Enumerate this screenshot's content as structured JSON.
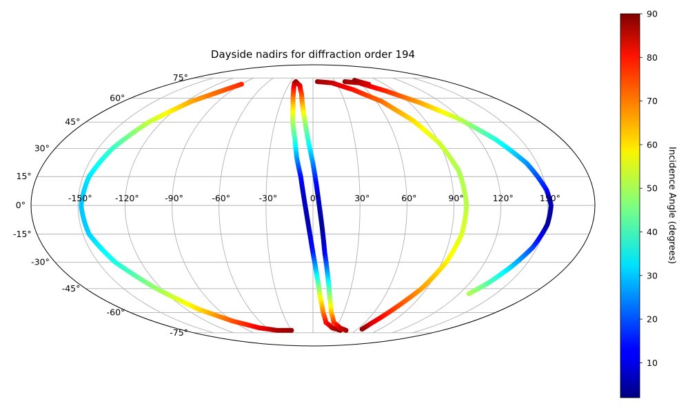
{
  "chart_data": {
    "type": "scatter",
    "projection": "mollweide",
    "title": "Dayside nadirs for diffraction order 194",
    "xlabel": "",
    "ylabel": "",
    "grid": true,
    "lon_ticks": [
      -150,
      -120,
      -90,
      -60,
      -30,
      0,
      30,
      60,
      90,
      120,
      150
    ],
    "lon_tick_labels": [
      "-150°",
      "-120°",
      "-90°",
      "-60°",
      "-30°",
      "0°",
      "30°",
      "60°",
      "90°",
      "120°",
      "150°"
    ],
    "lat_ticks": [
      75,
      60,
      45,
      30,
      15,
      0,
      -15,
      -30,
      -45,
      -60,
      -75
    ],
    "lat_tick_labels": [
      "75°",
      "60°",
      "45°",
      "30°",
      "15°",
      "0°",
      "-15°",
      "-30°",
      "-45°",
      "-60°",
      "-75°"
    ],
    "colorbar": {
      "label": "Incidence Angle (degrees)",
      "min": 2,
      "max": 90,
      "ticks": [
        10,
        20,
        30,
        40,
        50,
        60,
        70,
        80,
        90
      ],
      "tick_labels": [
        "10",
        "20",
        "30",
        "40",
        "50",
        "60",
        "70",
        "80",
        "90"
      ],
      "colormap": "jet"
    },
    "series": [
      {
        "points": [
          {
            "lon": -90,
            "lat": 70,
            "inc": 76
          },
          {
            "lon": -115,
            "lat": 58,
            "inc": 65
          },
          {
            "lon": -130,
            "lat": 45,
            "inc": 52
          },
          {
            "lon": -140,
            "lat": 30,
            "inc": 40
          },
          {
            "lon": -146,
            "lat": 15,
            "inc": 33
          },
          {
            "lon": -148,
            "lat": 0,
            "inc": 30
          },
          {
            "lon": -146,
            "lat": -15,
            "inc": 31
          },
          {
            "lon": -138,
            "lat": -30,
            "inc": 37
          },
          {
            "lon": -124,
            "lat": -45,
            "inc": 48
          },
          {
            "lon": -108,
            "lat": -58,
            "inc": 60
          },
          {
            "lon": -90,
            "lat": -66,
            "inc": 72
          },
          {
            "lon": -70,
            "lat": -71,
            "inc": 80
          },
          {
            "lon": -50,
            "lat": -73,
            "inc": 86
          },
          {
            "lon": -30,
            "lat": -73,
            "inc": 88
          }
        ]
      },
      {
        "points": [
          {
            "lon": -24,
            "lat": 71,
            "inc": 85
          },
          {
            "lon": -21,
            "lat": 64,
            "inc": 75
          },
          {
            "lon": -18,
            "lat": 55,
            "inc": 62
          },
          {
            "lon": -16,
            "lat": 45,
            "inc": 50
          },
          {
            "lon": -13,
            "lat": 35,
            "inc": 40
          },
          {
            "lon": -11,
            "lat": 25,
            "inc": 27
          },
          {
            "lon": -8,
            "lat": 15,
            "inc": 14
          },
          {
            "lon": -6,
            "lat": 5,
            "inc": 8
          },
          {
            "lon": -3,
            "lat": -10,
            "inc": 6
          },
          {
            "lon": 0,
            "lat": -25,
            "inc": 15
          },
          {
            "lon": 3,
            "lat": -38,
            "inc": 35
          },
          {
            "lon": 6,
            "lat": -50,
            "inc": 55
          },
          {
            "lon": 10,
            "lat": -60,
            "inc": 68
          },
          {
            "lon": 15,
            "lat": -67,
            "inc": 78
          },
          {
            "lon": 25,
            "lat": -71,
            "inc": 84
          },
          {
            "lon": 38,
            "lat": -73,
            "inc": 88
          }
        ]
      },
      {
        "points": [
          {
            "lon": -23,
            "lat": 72,
            "inc": 88
          },
          {
            "lon": -16,
            "lat": 69,
            "inc": 82
          },
          {
            "lon": -12,
            "lat": 63,
            "inc": 74
          },
          {
            "lon": -9,
            "lat": 54,
            "inc": 62
          },
          {
            "lon": -6,
            "lat": 44,
            "inc": 48
          },
          {
            "lon": -3,
            "lat": 33,
            "inc": 37
          },
          {
            "lon": 0,
            "lat": 22,
            "inc": 25
          },
          {
            "lon": 2,
            "lat": 12,
            "inc": 14
          },
          {
            "lon": 4,
            "lat": 0,
            "inc": 7
          },
          {
            "lon": 6,
            "lat": -12,
            "inc": 4
          },
          {
            "lon": 8,
            "lat": -25,
            "inc": 12
          },
          {
            "lon": 11,
            "lat": -38,
            "inc": 30
          },
          {
            "lon": 14,
            "lat": -50,
            "inc": 48
          },
          {
            "lon": 18,
            "lat": -60,
            "inc": 62
          },
          {
            "lon": 24,
            "lat": -67,
            "inc": 74
          },
          {
            "lon": 35,
            "lat": -71,
            "inc": 82
          },
          {
            "lon": 46,
            "lat": -73,
            "inc": 86
          }
        ]
      },
      {
        "points": [
          {
            "lon": 6,
            "lat": 72,
            "inc": 88
          },
          {
            "lon": 25,
            "lat": 71,
            "inc": 84
          },
          {
            "lon": 45,
            "lat": 66,
            "inc": 78
          },
          {
            "lon": 65,
            "lat": 58,
            "inc": 70
          },
          {
            "lon": 80,
            "lat": 46,
            "inc": 60
          },
          {
            "lon": 90,
            "lat": 33,
            "inc": 53
          },
          {
            "lon": 96,
            "lat": 18,
            "inc": 50
          },
          {
            "lon": 98,
            "lat": 0,
            "inc": 51
          },
          {
            "lon": 97,
            "lat": -15,
            "inc": 54
          },
          {
            "lon": 93,
            "lat": -30,
            "inc": 58
          },
          {
            "lon": 86,
            "lat": -45,
            "inc": 65
          },
          {
            "lon": 76,
            "lat": -58,
            "inc": 74
          },
          {
            "lon": 68,
            "lat": -68,
            "inc": 82
          },
          {
            "lon": 66,
            "lat": -72,
            "inc": 88
          }
        ]
      },
      {
        "points": [
          {
            "lon": 43,
            "lat": 72,
            "inc": 88
          },
          {
            "lon": 60,
            "lat": 71,
            "inc": 84
          },
          {
            "lon": 80,
            "lat": 65,
            "inc": 76
          },
          {
            "lon": 100,
            "lat": 57,
            "inc": 65
          },
          {
            "lon": 118,
            "lat": 47,
            "inc": 52
          },
          {
            "lon": 132,
            "lat": 35,
            "inc": 38
          },
          {
            "lon": 143,
            "lat": 22,
            "inc": 26
          },
          {
            "lon": 150,
            "lat": 8,
            "inc": 14
          },
          {
            "lon": 152,
            "lat": 0,
            "inc": 6
          },
          {
            "lon": 151,
            "lat": -10,
            "inc": 4
          },
          {
            "lon": 147,
            "lat": -22,
            "inc": 18
          },
          {
            "lon": 141,
            "lat": -32,
            "inc": 30
          },
          {
            "lon": 134,
            "lat": -42,
            "inc": 42
          },
          {
            "lon": 128,
            "lat": -48,
            "inc": 50
          }
        ]
      },
      {
        "points": [
          {
            "lon": 58,
            "lat": 73,
            "inc": 88
          },
          {
            "lon": 62,
            "lat": 72,
            "inc": 86
          },
          {
            "lon": 66,
            "lat": 71,
            "inc": 84
          },
          {
            "lon": 70,
            "lat": 70,
            "inc": 82
          }
        ]
      }
    ]
  }
}
